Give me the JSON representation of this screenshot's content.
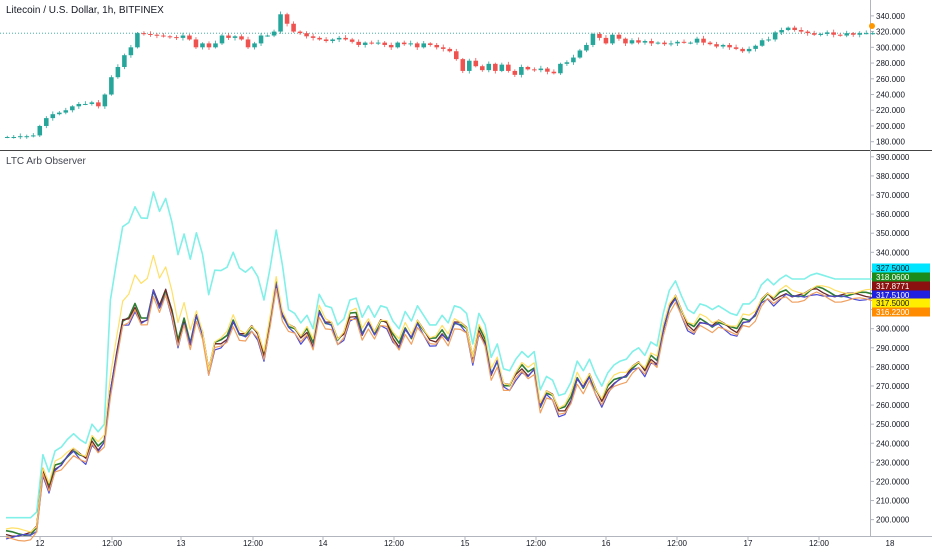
{
  "chart_data": [
    {
      "type": "candlestick",
      "title": "Litecoin / U.S. Dollar, 1h, BITFINEX",
      "y_ticks": [
        180,
        200,
        220,
        240,
        260,
        280,
        300,
        320,
        340
      ],
      "y_tick_labels": [
        "180.000",
        "200.000",
        "220.000",
        "240.000",
        "260.000",
        "280.000",
        "300.000",
        "320.000",
        "340.000"
      ],
      "ylim": [
        172,
        350
      ],
      "x_ticks": [
        "12",
        "12:00",
        "13",
        "12:00",
        "14",
        "12:00",
        "15",
        "12:00",
        "16",
        "12:00",
        "17",
        "12:00",
        "18"
      ],
      "last_price_line": 318,
      "closes": [
        186,
        186,
        187,
        187,
        188,
        200,
        210,
        215,
        217,
        220,
        225,
        228,
        228,
        230,
        225,
        240,
        262,
        275,
        290,
        300,
        318,
        317,
        316,
        315,
        314,
        313,
        312,
        315,
        310,
        300,
        305,
        300,
        305,
        315,
        312,
        314,
        310,
        300,
        305,
        315,
        315,
        320,
        342,
        330,
        320,
        318,
        314,
        312,
        310,
        308,
        310,
        312,
        310,
        307,
        303,
        306,
        305,
        306,
        303,
        300,
        306,
        304,
        305,
        300,
        305,
        303,
        300,
        298,
        295,
        285,
        270,
        283,
        276,
        271,
        279,
        270,
        278,
        270,
        265,
        275,
        272,
        271,
        273,
        269,
        267,
        279,
        281,
        287,
        296,
        303,
        317,
        312,
        305,
        316,
        311,
        305,
        309,
        306,
        308,
        305,
        306,
        304,
        305,
        307,
        306,
        306,
        311,
        306,
        304,
        301,
        303,
        300,
        298,
        295,
        298,
        302,
        309,
        310,
        319,
        322,
        325,
        322,
        320,
        318,
        316,
        317,
        319,
        316,
        315,
        318,
        316,
        318,
        318,
        318
      ]
    },
    {
      "type": "line",
      "title": "LTC Arb Observer",
      "y_ticks": [
        200,
        210,
        220,
        230,
        240,
        250,
        260,
        270,
        280,
        290,
        300,
        310,
        320,
        330,
        340,
        350,
        360,
        370,
        380,
        390
      ],
      "y_tick_labels": [
        "200.0000",
        "210.0000",
        "220.0000",
        "230.0000",
        "240.0000",
        "250.0000",
        "260.0000",
        "270.0000",
        "280.0000",
        "290.0000",
        "300.0000",
        "310.0000",
        "320.0000",
        "330.0000",
        "340.0000",
        "350.0000",
        "360.0000",
        "370.0000",
        "380.0000",
        "390.0000"
      ],
      "ylim": [
        193,
        392
      ],
      "x_ticks": [
        "12",
        "12:00",
        "13",
        "12:00",
        "14",
        "12:00",
        "15",
        "12:00",
        "16",
        "12:00",
        "17",
        "12:00",
        "18"
      ],
      "base": [
        193,
        193,
        193,
        193,
        193,
        196,
        226,
        217,
        228,
        230,
        234,
        237,
        234,
        232,
        242,
        238,
        242,
        268,
        287,
        304,
        305,
        312,
        305,
        306,
        321,
        312,
        320,
        309,
        293,
        305,
        293,
        308,
        298,
        278,
        292,
        293,
        296,
        305,
        298,
        297,
        301,
        297,
        286,
        304,
        325,
        308,
        302,
        300,
        295,
        299,
        292,
        310,
        304,
        303,
        294,
        297,
        307,
        308,
        298,
        304,
        298,
        304,
        303,
        296,
        292,
        301,
        296,
        304,
        299,
        294,
        294,
        299,
        295,
        304,
        303,
        300,
        284,
        300,
        294,
        277,
        284,
        271,
        270,
        276,
        280,
        277,
        280,
        260,
        267,
        265,
        257,
        258,
        264,
        275,
        270,
        276,
        268,
        262,
        269,
        273,
        275,
        276,
        280,
        282,
        278,
        285,
        283,
        300,
        312,
        317,
        309,
        302,
        300,
        305,
        304,
        302,
        304,
        302,
        300,
        299,
        305,
        305,
        308,
        315,
        318,
        315,
        318,
        320,
        318,
        318,
        318,
        320,
        321,
        320,
        319,
        318,
        318,
        318,
        318,
        318,
        318,
        318
      ],
      "series": [
        {
          "name": "327.5000",
          "color": "#80f0e8",
          "label_bg": "#00e5ff",
          "offset": 8,
          "width": 1.6
        },
        {
          "name": "318.0600",
          "color": "#2e7d32",
          "label_bg": "#1b8b1b",
          "offset": 0,
          "width": 1.6
        },
        {
          "name": "317.8771",
          "color": "#6d2a2a",
          "label_bg": "#8b1010",
          "offset": -0.5,
          "width": 1.3
        },
        {
          "name": "317.5100",
          "color": "#4b4bd6",
          "label_bg": "#2020e0",
          "offset": -2,
          "width": 1.2
        },
        {
          "name": "317.5000",
          "color": "#ffe066",
          "label_bg": "#ffee00",
          "offset": 1.5,
          "width": 1.2
        },
        {
          "name": "316.2200",
          "color": "#f0a060",
          "label_bg": "#ff8c00",
          "offset": -3,
          "width": 1.2
        }
      ]
    }
  ]
}
